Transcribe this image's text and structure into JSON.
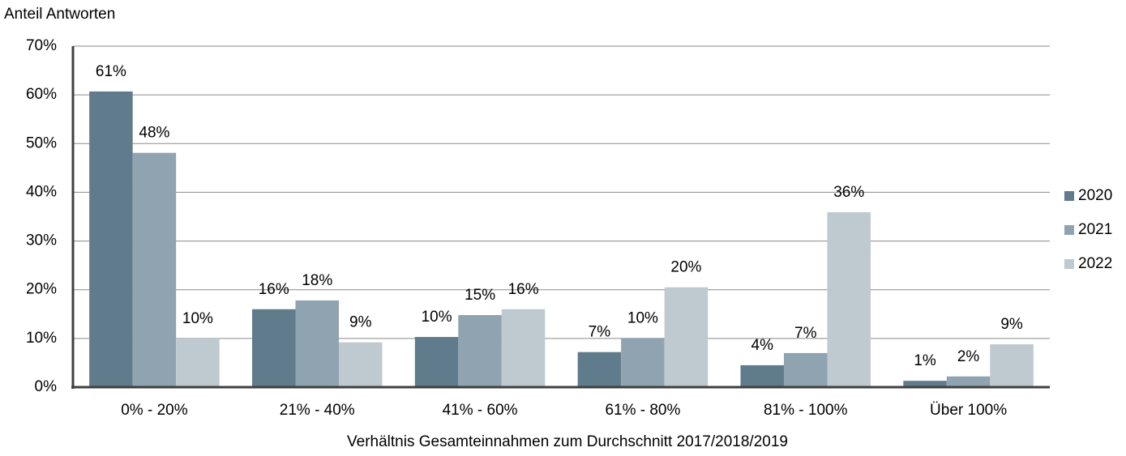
{
  "chart_data": {
    "type": "bar",
    "y_axis_label": "Anteil Antworten",
    "x_axis_label": "Verhältnis Gesamteinnahmen zum Durchschnitt 2017/2018/2019",
    "categories": [
      "0% - 20%",
      "21% - 40%",
      "41% - 60%",
      "61% - 80%",
      "81% - 100%",
      "Über 100%"
    ],
    "series": [
      {
        "name": "2020",
        "color": "#607b8c",
        "values": [
          60.7,
          16,
          10.3,
          7.2,
          4.5,
          1.3
        ],
        "value_labels": [
          "61%",
          "16%",
          "10%",
          "7%",
          "4%",
          "1%"
        ]
      },
      {
        "name": "2021",
        "color": "#8fa3b0",
        "values": [
          48.1,
          17.8,
          14.8,
          10.1,
          7,
          2.2
        ],
        "value_labels": [
          "48%",
          "18%",
          "15%",
          "10%",
          "7%",
          "2%"
        ]
      },
      {
        "name": "2022",
        "color": "#bfc9d0",
        "values": [
          10,
          9.2,
          16,
          20.5,
          35.9,
          8.8
        ],
        "value_labels": [
          "10%",
          "9%",
          "16%",
          "20%",
          "36%",
          "9%"
        ]
      }
    ],
    "ylim": [
      0,
      70
    ],
    "yticks": [
      {
        "value": 0,
        "label": "0%"
      },
      {
        "value": 10,
        "label": "10%"
      },
      {
        "value": 20,
        "label": "20%"
      },
      {
        "value": 30,
        "label": "30%"
      },
      {
        "value": 40,
        "label": "40%"
      },
      {
        "value": 50,
        "label": "50%"
      },
      {
        "value": 60,
        "label": "60%"
      },
      {
        "value": 70,
        "label": "70%"
      }
    ],
    "grid": true,
    "legend": "right"
  }
}
